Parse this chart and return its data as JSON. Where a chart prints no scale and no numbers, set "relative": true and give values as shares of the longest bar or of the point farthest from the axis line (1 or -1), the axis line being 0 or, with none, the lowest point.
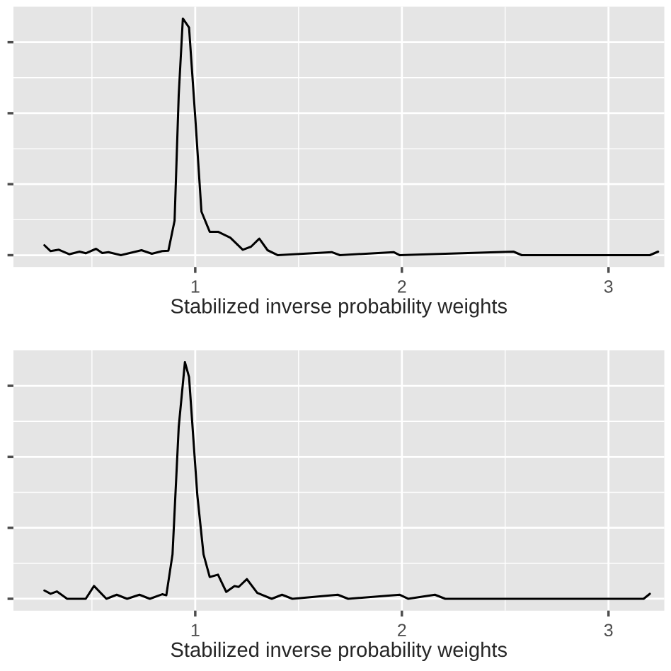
{
  "chart_data": [
    {
      "type": "line",
      "xlabel": "Stabilized inverse probability weights",
      "relative": true,
      "xlim": [
        0.12,
        3.27
      ],
      "xticks": [
        1,
        2,
        3
      ],
      "tick_labels": "x",
      "grid": true,
      "color": "#000000",
      "x": [
        0.27,
        0.3,
        0.34,
        0.39,
        0.44,
        0.47,
        0.52,
        0.55,
        0.58,
        0.64,
        0.74,
        0.79,
        0.84,
        0.87,
        0.9,
        0.92,
        0.94,
        0.97,
        1.0,
        1.03,
        1.07,
        1.11,
        1.17,
        1.23,
        1.27,
        1.31,
        1.35,
        1.4,
        1.66,
        1.7,
        1.96,
        1.99,
        2.54,
        2.58,
        3.2,
        3.24
      ],
      "values": [
        0.042,
        0.017,
        0.023,
        0.004,
        0.015,
        0.008,
        0.027,
        0.009,
        0.013,
        0,
        0.021,
        0.006,
        0.017,
        0.019,
        0.146,
        0.677,
        1.0,
        0.962,
        0.583,
        0.184,
        0.099,
        0.099,
        0.074,
        0.023,
        0.036,
        0.07,
        0.021,
        0,
        0.013,
        0,
        0.013,
        0,
        0.015,
        0,
        0,
        0.015
      ]
    },
    {
      "type": "line",
      "xlabel": "Stabilized inverse probability weights",
      "relative": true,
      "xlim": [
        0.12,
        3.27
      ],
      "xticks": [
        1,
        2,
        3
      ],
      "tick_labels": "x",
      "grid": true,
      "color": "#000000",
      "x": [
        0.27,
        0.3,
        0.33,
        0.38,
        0.47,
        0.51,
        0.57,
        0.62,
        0.67,
        0.73,
        0.78,
        0.84,
        0.86,
        0.89,
        0.92,
        0.95,
        0.97,
        1.01,
        1.04,
        1.07,
        1.11,
        1.15,
        1.19,
        1.21,
        1.25,
        1.3,
        1.37,
        1.42,
        1.47,
        1.69,
        1.74,
        1.99,
        2.03,
        2.16,
        2.21,
        3.17,
        3.2
      ],
      "values": [
        0.035,
        0.021,
        0.031,
        0,
        0,
        0.054,
        0,
        0.017,
        0,
        0.017,
        0,
        0.019,
        0.015,
        0.188,
        0.726,
        1.0,
        0.937,
        0.438,
        0.188,
        0.092,
        0.102,
        0.029,
        0.054,
        0.05,
        0.083,
        0.025,
        0,
        0.017,
        0,
        0.017,
        0,
        0.017,
        0,
        0.017,
        0,
        0,
        0.021
      ]
    }
  ]
}
